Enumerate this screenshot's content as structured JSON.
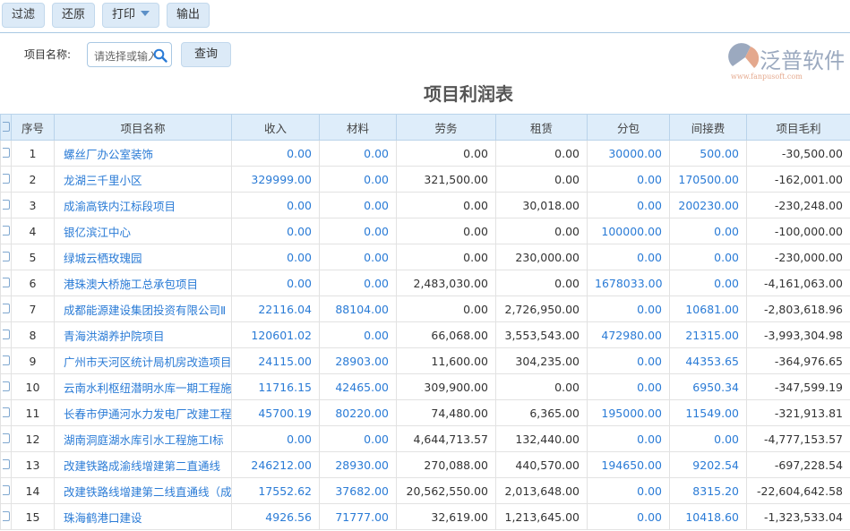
{
  "toolbar": {
    "filter": "过滤",
    "reset": "还原",
    "print": "打印",
    "export": "输出"
  },
  "search": {
    "label": "项目名称:",
    "placeholder": "请选择或输入",
    "query": "查询"
  },
  "report": {
    "title": "项目利润表"
  },
  "table": {
    "headers": [
      "序号",
      "项目名称",
      "收入",
      "材料",
      "劳务",
      "租赁",
      "分包",
      "间接费",
      "项目毛利"
    ],
    "rows": [
      [
        "1",
        "螺丝厂办公室装饰",
        "0.00",
        "0.00",
        "0.00",
        "0.00",
        "30000.00",
        "500.00",
        "-30,500.00"
      ],
      [
        "2",
        "龙湖三千里小区",
        "329999.00",
        "0.00",
        "321,500.00",
        "0.00",
        "0.00",
        "170500.00",
        "-162,001.00"
      ],
      [
        "3",
        "成渝高铁内江标段项目",
        "0.00",
        "0.00",
        "0.00",
        "30,018.00",
        "0.00",
        "200230.00",
        "-230,248.00"
      ],
      [
        "4",
        "银亿滨江中心",
        "0.00",
        "0.00",
        "0.00",
        "0.00",
        "100000.00",
        "0.00",
        "-100,000.00"
      ],
      [
        "5",
        "绿城云栖玫瑰园",
        "0.00",
        "0.00",
        "0.00",
        "230,000.00",
        "0.00",
        "0.00",
        "-230,000.00"
      ],
      [
        "6",
        "港珠澳大桥施工总承包项目",
        "0.00",
        "0.00",
        "2,483,030.00",
        "0.00",
        "1678033.00",
        "0.00",
        "-4,161,063.00"
      ],
      [
        "7",
        "成都能源建设集团投资有限公司Ⅱ",
        "22116.04",
        "88104.00",
        "0.00",
        "2,726,950.00",
        "0.00",
        "10681.00",
        "-2,803,618.96"
      ],
      [
        "8",
        "青海洪湖养护院项目",
        "120601.02",
        "0.00",
        "66,068.00",
        "3,553,543.00",
        "472980.00",
        "21315.00",
        "-3,993,304.98"
      ],
      [
        "9",
        "广州市天河区统计局机房改造项目",
        "24115.00",
        "28903.00",
        "11,600.00",
        "304,235.00",
        "0.00",
        "44353.65",
        "-364,976.65"
      ],
      [
        "10",
        "云南水利枢纽潜明水库一期工程施工",
        "11716.15",
        "42465.00",
        "309,900.00",
        "0.00",
        "0.00",
        "6950.34",
        "-347,599.19"
      ],
      [
        "11",
        "长春市伊通河水力发电厂改建工程",
        "45700.19",
        "80220.00",
        "74,480.00",
        "6,365.00",
        "195000.00",
        "11549.00",
        "-321,913.81"
      ],
      [
        "12",
        "湖南洞庭湖水库引水工程施工Ⅰ标",
        "0.00",
        "0.00",
        "4,644,713.57",
        "132,440.00",
        "0.00",
        "0.00",
        "-4,777,153.57"
      ],
      [
        "13",
        "改建铁路成渝线增建第二直通线",
        "246212.00",
        "28930.00",
        "270,088.00",
        "440,570.00",
        "194650.00",
        "9202.54",
        "-697,228.54"
      ],
      [
        "14",
        "改建铁路线增建第二线直通线（成",
        "17552.62",
        "37682.00",
        "20,562,550.00",
        "2,013,648.00",
        "0.00",
        "8315.20",
        "-22,604,642.58"
      ],
      [
        "15",
        "珠海鹤港口建设",
        "4926.56",
        "71777.00",
        "32,619.00",
        "1,213,645.00",
        "0.00",
        "10418.60",
        "-1,323,533.04"
      ]
    ]
  },
  "watermark": {
    "text": "泛普软件",
    "url": "www.fanpusoft.com"
  },
  "colors": {
    "link": "#2a7bd6",
    "header_bg": "#deedfa",
    "button_bg": "#dceaf7"
  }
}
